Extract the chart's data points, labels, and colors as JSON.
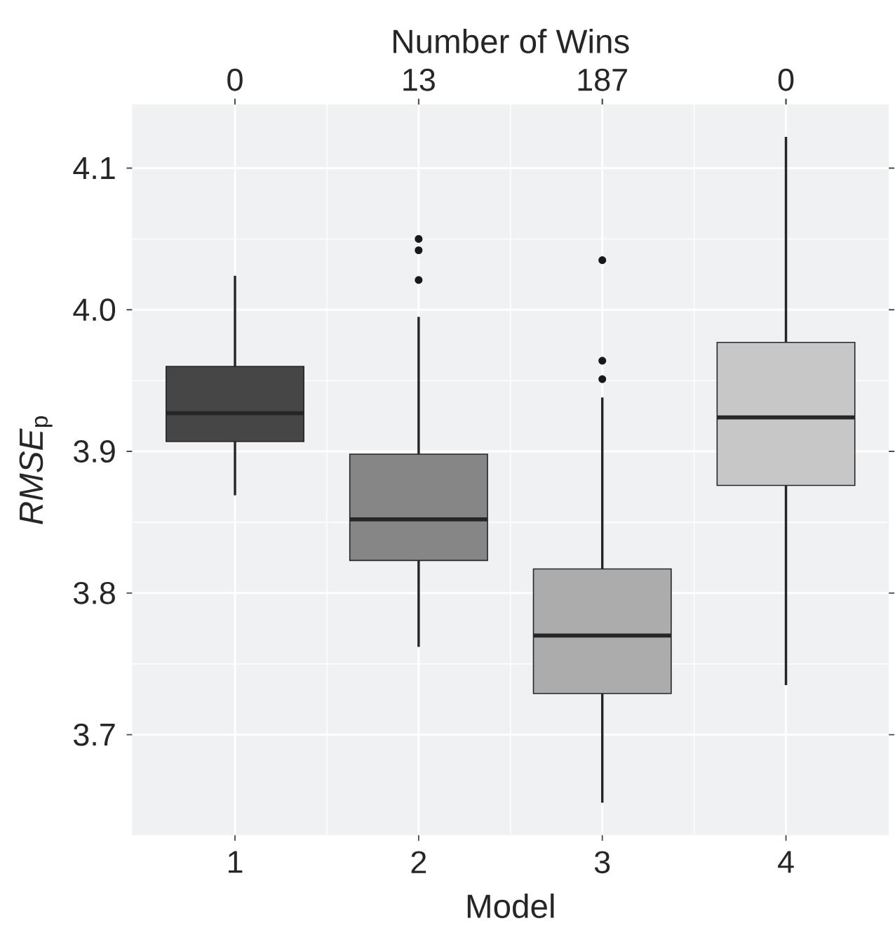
{
  "chart_data": {
    "type": "box",
    "xlabel": "Model",
    "ylabel": "*RMSE*$_{p}$",
    "x2label": "Number of Wins",
    "annotations": [
      "0",
      "13",
      "187",
      "0"
    ],
    "categories": [
      "1",
      "2",
      "3",
      "4"
    ],
    "colors": [
      "#464646",
      "#868686",
      "#acacac",
      "#c7c7c7"
    ],
    "boxes": [
      {
        "low": 3.869,
        "q1": 3.907,
        "median": 3.927,
        "q3": 3.96,
        "high": 4.024
      },
      {
        "low": 3.762,
        "q1": 3.823,
        "median": 3.852,
        "q3": 3.898,
        "high": 3.995,
        "outliers": [
          4.05,
          4.042,
          4.021
        ]
      },
      {
        "low": 3.652,
        "q1": 3.729,
        "median": 3.77,
        "q3": 3.817,
        "high": 3.938,
        "outliers": [
          4.035,
          3.964,
          3.951
        ]
      },
      {
        "low": 3.735,
        "q1": 3.876,
        "median": 3.924,
        "q3": 3.977,
        "high": 4.122
      }
    ],
    "ylim": [
      3.629,
      4.145
    ],
    "yticks": [
      3.7,
      3.8,
      3.9,
      {
        "value": 4.0,
        "label": "4.0"
      },
      4.1
    ],
    "grid": true
  }
}
